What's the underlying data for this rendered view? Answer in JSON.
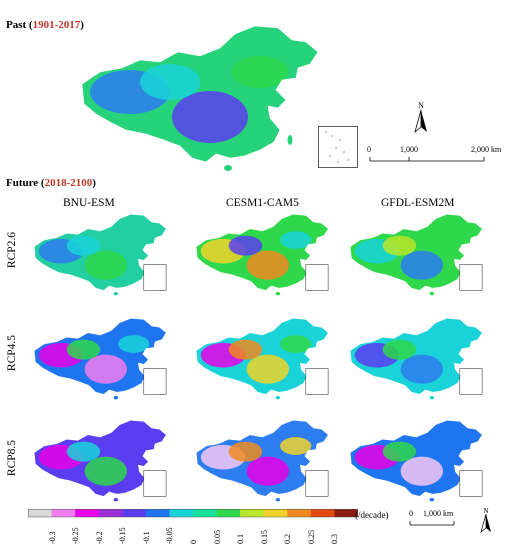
{
  "past": {
    "label_prefix": "Past (",
    "label_years": "1901-2017",
    "label_suffix": ")"
  },
  "future": {
    "label_prefix": "Future (",
    "label_years": "2018-2100",
    "label_suffix": ")"
  },
  "models": [
    "BNU-ESM",
    "CESM1-CAM5",
    "GFDL-ESM2M"
  ],
  "scenarios": [
    "RCP2.6",
    "RCP4.5",
    "RCP8.5"
  ],
  "scale_top": {
    "ticks": [
      "0",
      "1,000",
      "2,000 km"
    ]
  },
  "scale_bottom": {
    "ticks": [
      "0",
      "1,000 km"
    ]
  },
  "north_label": "N",
  "colorbar": {
    "unit": "(/decade)",
    "labels": [
      "-0.3",
      "-0.25",
      "-0.2",
      "-0.15",
      "-0.1",
      "-0.05",
      "0",
      "0.05",
      "0.1",
      "0.15",
      "0.2",
      "0.25",
      "0.3"
    ],
    "colors": [
      "#d9d9d9",
      "#f07ef0",
      "#e800e8",
      "#9b2cd8",
      "#5a3df0",
      "#1f74f0",
      "#19d3d8",
      "#17e39a",
      "#2ed84a",
      "#b8e62a",
      "#f0d32a",
      "#f08a1e",
      "#e24a12",
      "#8b1a10"
    ]
  },
  "panels": {
    "past": {
      "base": "#27d37a",
      "blobs": [
        "#2d7df0",
        "#5a3df0",
        "#19d3d8",
        "#2ed84a"
      ]
    },
    "rcp26": [
      {
        "base": "#22cfa0",
        "blobs": [
          "#2d7df0",
          "#2ed84a",
          "#19d3d8"
        ]
      },
      {
        "base": "#2ed84a",
        "blobs": [
          "#f0d32a",
          "#f08a1e",
          "#5a3df0",
          "#19d3d8"
        ]
      },
      {
        "base": "#2ed84a",
        "blobs": [
          "#19d3d8",
          "#2d7df0",
          "#b8e62a"
        ]
      }
    ],
    "rcp45": [
      {
        "base": "#1f74f0",
        "blobs": [
          "#e800e8",
          "#f07ef0",
          "#2ed84a",
          "#19d3d8"
        ]
      },
      {
        "base": "#19d3d8",
        "blobs": [
          "#e800e8",
          "#f0d32a",
          "#f08a1e",
          "#2ed84a"
        ]
      },
      {
        "base": "#19d3d8",
        "blobs": [
          "#5a3df0",
          "#2d7df0",
          "#2ed84a"
        ]
      }
    ],
    "rcp85": [
      {
        "base": "#5a3df0",
        "blobs": [
          "#e800e8",
          "#2ed84a",
          "#19d3d8"
        ]
      },
      {
        "base": "#2d7df0",
        "blobs": [
          "#f4c6f4",
          "#e800e8",
          "#f08a1e",
          "#f0d32a"
        ]
      },
      {
        "base": "#1f74f0",
        "blobs": [
          "#e800e8",
          "#f4c6f4",
          "#2ed84a"
        ]
      }
    ]
  }
}
